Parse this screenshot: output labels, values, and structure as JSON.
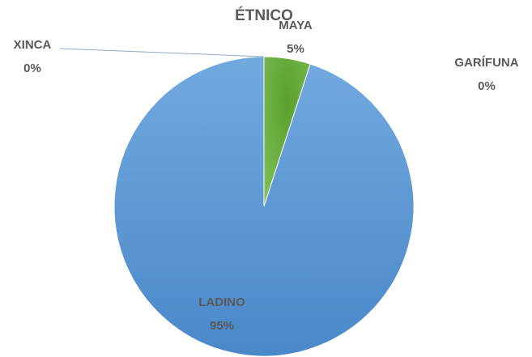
{
  "chart_data": {
    "type": "pie",
    "title": "ÉTNICO",
    "categories": [
      "MAYA",
      "GARÍFUNA",
      "LADINO",
      "XINCA"
    ],
    "values": [
      5,
      0,
      95,
      0
    ],
    "value_labels": [
      "5%",
      "0%",
      "95%",
      "0%"
    ],
    "colors": [
      "#6aaa45",
      "#a5a5a5",
      "#5b9bd5",
      "#ed7d31"
    ]
  }
}
